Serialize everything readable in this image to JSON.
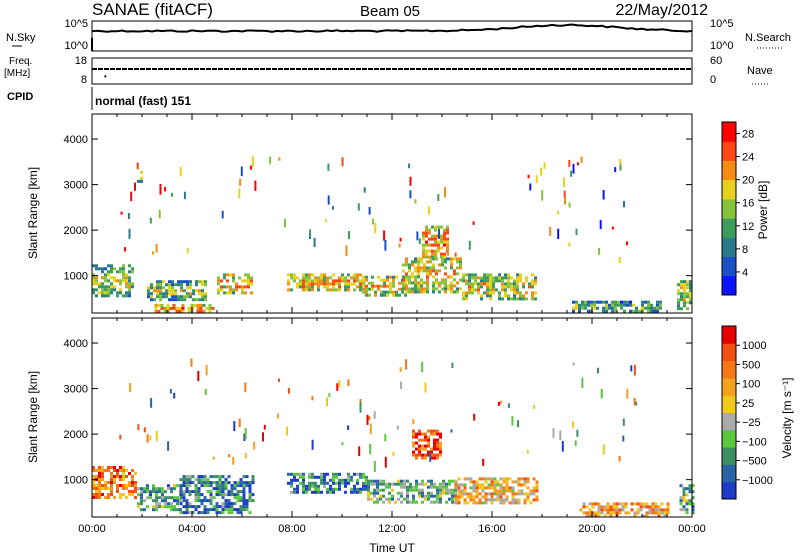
{
  "header": {
    "station": "SANAE (fitACF)",
    "beam": "Beam 05",
    "date": "22/May/2012"
  },
  "nsky_panel": {
    "left_label": "N.Sky",
    "right_label": "N.Search",
    "left_ticks": [
      "10^5",
      "10^0"
    ],
    "right_ticks": [
      "10^5",
      "10^0"
    ]
  },
  "freq_panel": {
    "left_label_top": "Freq.",
    "left_label_bottom": "[MHz]",
    "right_label": "Nave",
    "left_ticks": [
      "18",
      "8"
    ],
    "right_ticks": [
      "60",
      "0"
    ]
  },
  "cpid_panel": {
    "label": "CPID",
    "mode": "normal (fast) 151"
  },
  "chart_data": [
    {
      "type": "heatmap",
      "name": "power",
      "ylabel": "Slant Range [km]",
      "xlabel": "",
      "xlim": [
        0,
        24
      ],
      "ylim": [
        180,
        4550
      ],
      "yticks": [
        "4000",
        "3000",
        "2000",
        "1000"
      ],
      "colorbar": {
        "label": "Power [dB]",
        "ticks": [
          "28",
          "24",
          "20",
          "16",
          "12",
          "8",
          "4"
        ],
        "range": [
          0,
          30
        ],
        "colors": [
          "#0a14ff",
          "#1a50c8",
          "#2a7a8c",
          "#3c9c5a",
          "#86c33c",
          "#e6d21e",
          "#f58c14",
          "#ff4614",
          "#ff0000"
        ]
      },
      "echo_bands": [
        {
          "t0": 0.0,
          "t1": 1.6,
          "r0": 550,
          "r1": 1250,
          "level": 0.35
        },
        {
          "t0": 1.8,
          "t1": 2.0,
          "r0": 3050,
          "r1": 3300,
          "level": 0.4
        },
        {
          "t0": 2.2,
          "t1": 4.6,
          "r0": 500,
          "r1": 900,
          "level": 0.35
        },
        {
          "t0": 2.5,
          "t1": 4.8,
          "r0": 200,
          "r1": 380,
          "level": 0.6
        },
        {
          "t0": 5.0,
          "t1": 6.4,
          "r0": 650,
          "r1": 1050,
          "level": 0.55
        },
        {
          "t0": 7.8,
          "t1": 10.8,
          "r0": 700,
          "r1": 1050,
          "level": 0.55
        },
        {
          "t0": 10.8,
          "t1": 12.6,
          "r0": 600,
          "r1": 1000,
          "level": 0.5
        },
        {
          "t0": 12.4,
          "t1": 14.8,
          "r0": 650,
          "r1": 1400,
          "level": 0.5
        },
        {
          "t0": 13.2,
          "t1": 14.2,
          "r0": 1400,
          "r1": 2100,
          "level": 0.6
        },
        {
          "t0": 14.8,
          "t1": 17.8,
          "r0": 500,
          "r1": 1050,
          "level": 0.45
        },
        {
          "t0": 19.2,
          "t1": 22.8,
          "r0": 220,
          "r1": 450,
          "level": 0.3
        },
        {
          "t0": 23.4,
          "t1": 24.0,
          "r0": 300,
          "r1": 900,
          "level": 0.4
        }
      ]
    },
    {
      "type": "heatmap",
      "name": "velocity",
      "ylabel": "Slant Range [km]",
      "xlabel": "Time UT",
      "xlim": [
        0,
        24
      ],
      "ylim": [
        180,
        4550
      ],
      "xticks": [
        "00:00",
        "04:00",
        "08:00",
        "12:00",
        "16:00",
        "20:00",
        "00:00"
      ],
      "yticks": [
        "4000",
        "3000",
        "2000",
        "1000"
      ],
      "colorbar": {
        "label": "Velocity [m s⁻¹]",
        "ticks": [
          "1000",
          "500",
          "100",
          "25",
          "−25",
          "−100",
          "−500",
          "−1000"
        ],
        "colors": [
          "#1e3cc8",
          "#2a64a8",
          "#3c9064",
          "#5ac83c",
          "#aaaaaa",
          "#f0c81e",
          "#f5a01e",
          "#f57814",
          "#f55014",
          "#e60000"
        ]
      },
      "echo_bands": [
        {
          "t0": 0.0,
          "t1": 1.8,
          "r0": 600,
          "r1": 1300,
          "level": 0.75
        },
        {
          "t0": 1.8,
          "t1": 3.5,
          "r0": 350,
          "r1": 900,
          "level": 0.3
        },
        {
          "t0": 3.5,
          "t1": 6.5,
          "r0": 300,
          "r1": 1100,
          "level": 0.2
        },
        {
          "t0": 7.8,
          "t1": 11.0,
          "r0": 700,
          "r1": 1150,
          "level": 0.2
        },
        {
          "t0": 11.0,
          "t1": 14.5,
          "r0": 500,
          "r1": 1000,
          "level": 0.35
        },
        {
          "t0": 12.8,
          "t1": 14.0,
          "r0": 1500,
          "r1": 2100,
          "level": 0.85
        },
        {
          "t0": 14.5,
          "t1": 17.8,
          "r0": 500,
          "r1": 1050,
          "level": 0.6
        },
        {
          "t0": 19.5,
          "t1": 23.0,
          "r0": 220,
          "r1": 500,
          "level": 0.65
        },
        {
          "t0": 23.5,
          "t1": 24.0,
          "r0": 250,
          "r1": 900,
          "level": 0.3
        }
      ]
    }
  ]
}
